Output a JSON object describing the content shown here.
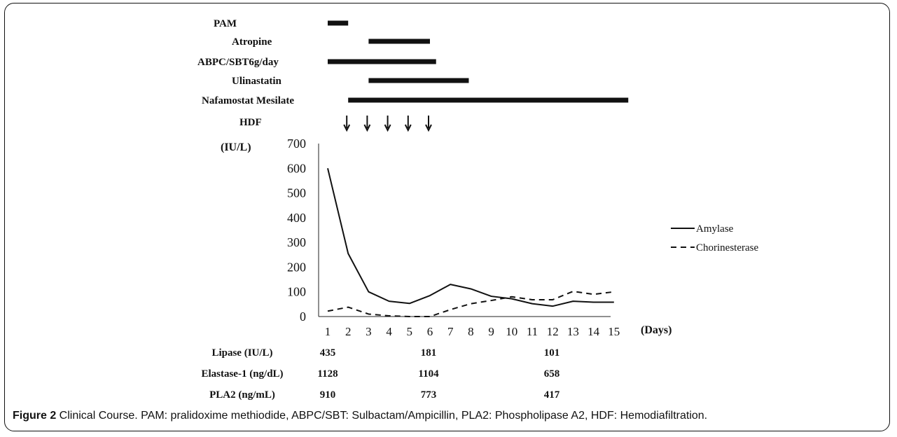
{
  "chart_data": {
    "type": "line",
    "x": [
      1,
      2,
      3,
      4,
      5,
      6,
      7,
      8,
      9,
      10,
      11,
      12,
      13,
      14,
      15
    ],
    "series": [
      {
        "name": "Amylase",
        "style": "solid",
        "values": [
          600,
          255,
          100,
          62,
          53,
          85,
          130,
          112,
          82,
          72,
          52,
          42,
          62,
          58,
          58
        ]
      },
      {
        "name": "Chorinesterase",
        "style": "dashed",
        "values": [
          22,
          38,
          10,
          3,
          0,
          0,
          28,
          52,
          65,
          80,
          68,
          68,
          102,
          90,
          100
        ]
      }
    ],
    "ylim": [
      0,
      700
    ],
    "yticks": [
      0,
      100,
      200,
      300,
      400,
      500,
      600,
      700
    ],
    "xlim": [
      1,
      15
    ],
    "ylabel": "(IU/L)",
    "xlabel": "(Days)",
    "legend_position": "right",
    "grid": false,
    "treatments": [
      {
        "label": "PAM",
        "start": 1,
        "end": 2
      },
      {
        "label": "Atropine",
        "start": 3,
        "end": 6
      },
      {
        "label": "ABPC/SBT6g/day",
        "start": 1,
        "end": 6.3
      },
      {
        "label": "Ulinastatin",
        "start": 3,
        "end": 7.9
      },
      {
        "label": "Nafamostat Mesilate",
        "start": 2,
        "end": 15.7
      }
    ],
    "hdf": {
      "label": "HDF",
      "days": [
        2,
        3,
        4,
        5,
        6
      ]
    },
    "lab_table": {
      "days": [
        1,
        6,
        12
      ],
      "rows": [
        {
          "label": "Lipase (IU/L)",
          "values": [
            "435",
            "181",
            "101"
          ]
        },
        {
          "label": "Elastase-1 (ng/dL)",
          "values": [
            "1128",
            "1104",
            "658"
          ]
        },
        {
          "label": "PLA2 (ng/mL)",
          "values": [
            "910",
            "773",
            "417"
          ]
        }
      ]
    }
  },
  "caption": {
    "label": "Figure 2",
    "text": " Clinical Course. PAM: pralidoxime methiodide, ABPC/SBT: Sulbactam/Ampicillin, PLA2: Phospholipase A2, HDF: Hemodiafiltration."
  }
}
